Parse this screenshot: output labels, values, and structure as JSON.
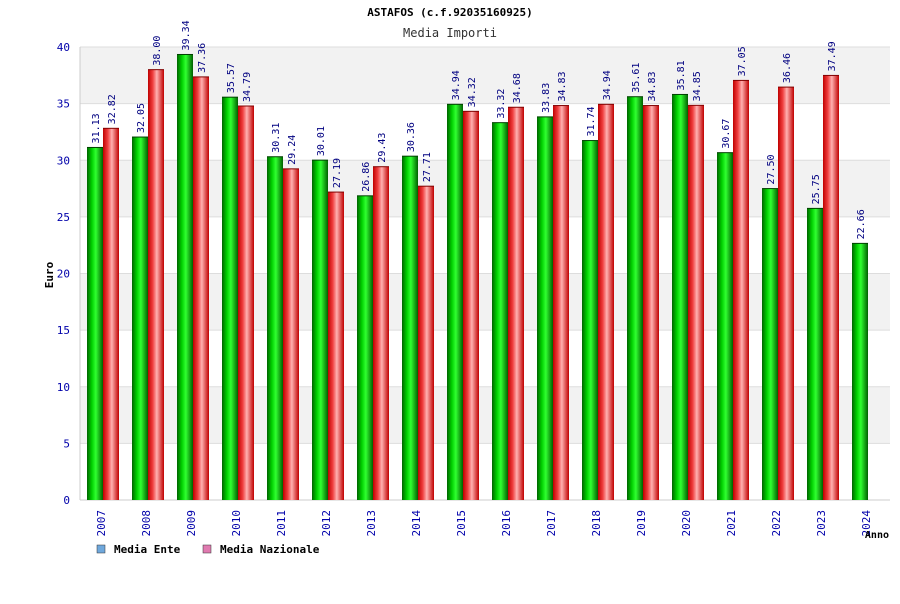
{
  "chart_data": {
    "type": "bar",
    "title": "ASTAFOS (c.f.92035160925)",
    "subtitle": "Media Importi",
    "ylabel": "Euro",
    "xlabel": "Anno",
    "ylim": [
      0,
      40
    ],
    "yticks": [
      0,
      5,
      10,
      15,
      20,
      25,
      30,
      35,
      40
    ],
    "grid": true,
    "legend_position": "bottom-left",
    "categories": [
      "2007",
      "2008",
      "2009",
      "2010",
      "2011",
      "2012",
      "2013",
      "2014",
      "2015",
      "2016",
      "2017",
      "2018",
      "2019",
      "2020",
      "2021",
      "2022",
      "2023",
      "2024"
    ],
    "series": [
      {
        "name": "Media Ente",
        "color": "#00b000",
        "legend_color": "#6fa8dc",
        "values": [
          31.13,
          32.05,
          39.34,
          35.57,
          30.31,
          30.01,
          26.86,
          30.36,
          34.94,
          33.32,
          33.83,
          31.74,
          35.61,
          35.81,
          30.67,
          27.5,
          25.75,
          22.66
        ],
        "labels": [
          "31.13",
          "32.05",
          "39.34",
          "35.57",
          "30.31",
          "30.01",
          "26.86",
          "30.36",
          "34.94",
          "33.32",
          "33.83",
          "31.74",
          "35.61",
          "35.81",
          "30.67",
          "27.50",
          "25.75",
          "22.66"
        ]
      },
      {
        "name": "Media Nazionale",
        "color": "#e82020",
        "legend_color": "#e07ab0",
        "values": [
          32.82,
          38.0,
          37.36,
          34.79,
          29.24,
          27.19,
          29.43,
          27.71,
          34.32,
          34.68,
          34.83,
          34.94,
          34.83,
          34.85,
          37.05,
          36.46,
          37.49,
          null
        ],
        "labels": [
          "32.82",
          "38.00",
          "37.36",
          "34.79",
          "29.24",
          "27.19",
          "29.43",
          "27.71",
          "34.32",
          "34.68",
          "34.83",
          "34.94",
          "34.83",
          "34.85",
          "37.05",
          "36.46",
          "37.49",
          ""
        ]
      }
    ]
  }
}
